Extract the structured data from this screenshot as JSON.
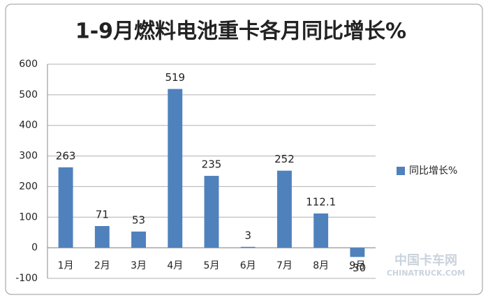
{
  "chart_data": {
    "type": "bar",
    "title": "1-9月燃料电池重卡各月同比增长%",
    "categories": [
      "1月",
      "2月",
      "3月",
      "4月",
      "5月",
      "6月",
      "7月",
      "8月",
      "9月"
    ],
    "series": [
      {
        "name": "同比增长%",
        "color": "#4f81bd",
        "values": [
          263,
          71,
          53,
          519,
          235,
          3,
          252,
          112.1,
          -30
        ]
      }
    ],
    "ylim": [
      -100,
      600
    ],
    "yticks": [
      -100,
      0,
      100,
      200,
      300,
      400,
      500,
      600
    ],
    "grid": true,
    "legend": "right",
    "watermark": [
      "中国卡车网",
      "CHINATRUCK.COM"
    ]
  }
}
